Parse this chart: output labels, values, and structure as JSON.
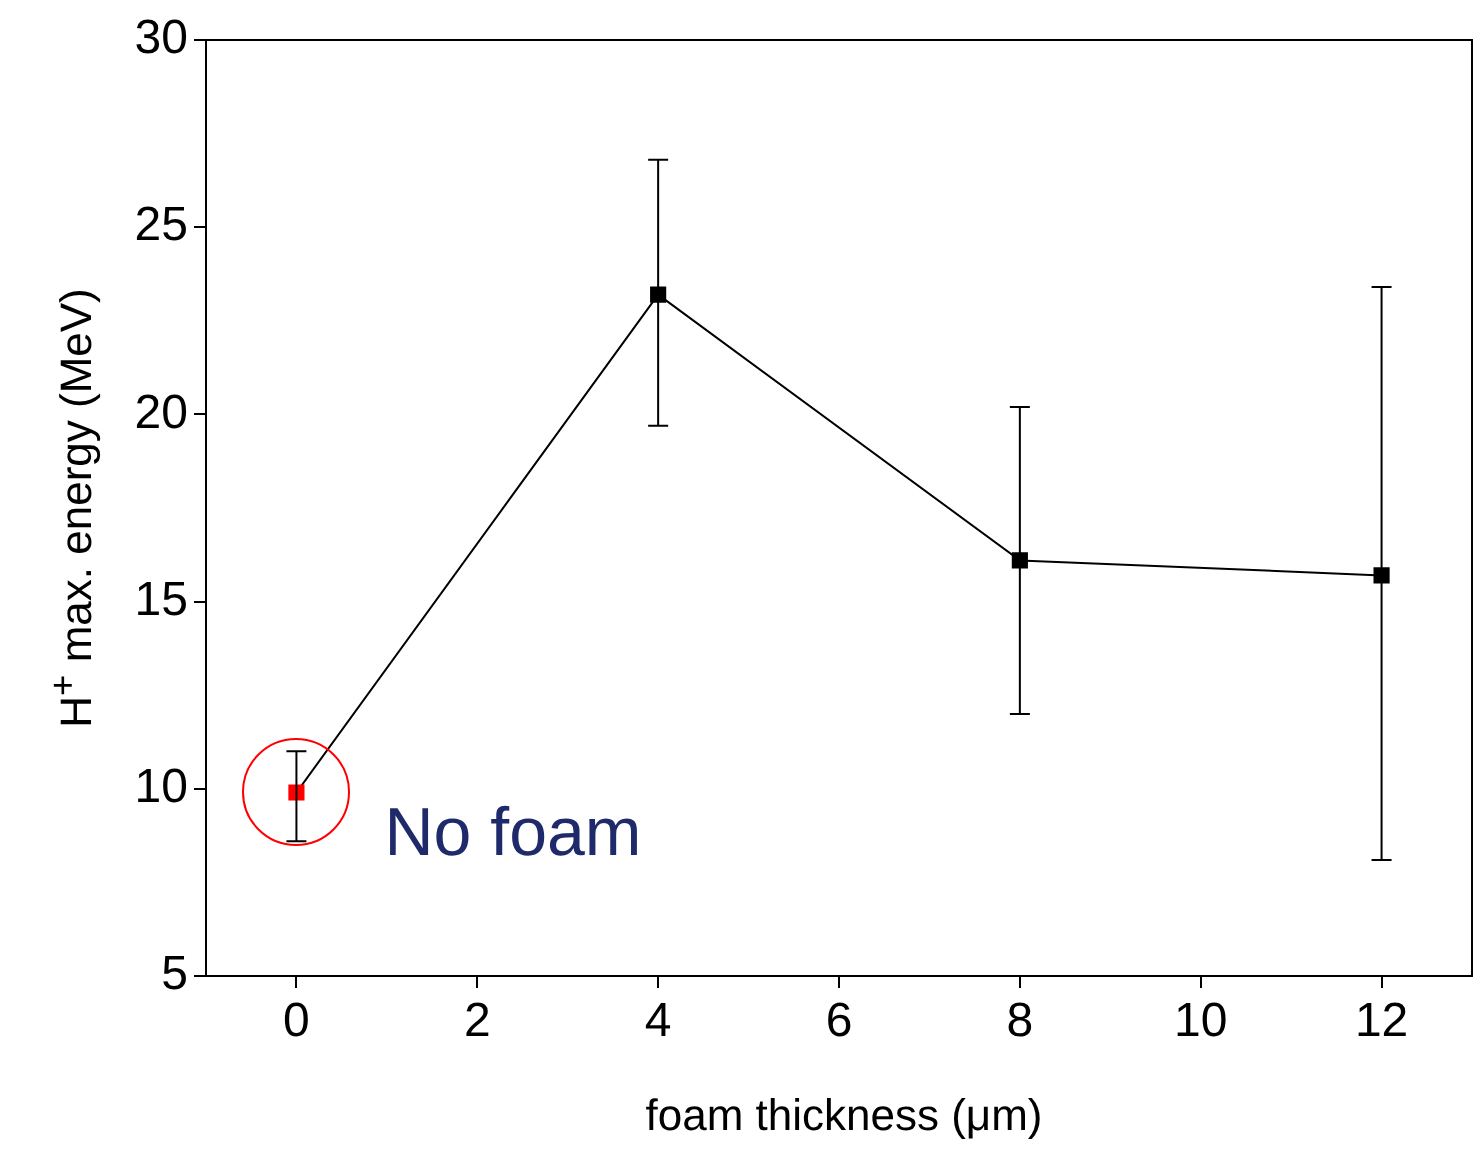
{
  "chart_data": {
    "type": "line",
    "xlabel": "foam thickness (μm)",
    "ylabel": "H$^{+}$ max. energy (MeV)",
    "x": [
      0,
      4,
      8,
      12
    ],
    "series": [
      {
        "color": "#000000",
        "colors": [
          "#ff0000",
          "#000000",
          "#000000",
          "#000000"
        ],
        "values": [
          9.9,
          23.2,
          16.1,
          15.7
        ],
        "errors": [
          [
            8.6,
            11.0
          ],
          [
            19.7,
            26.8
          ],
          [
            12.0,
            20.2
          ],
          [
            8.1,
            23.4
          ]
        ]
      }
    ],
    "xlim": [
      -1,
      13
    ],
    "xticks": [
      0,
      2,
      4,
      6,
      8,
      10,
      12
    ],
    "ylim": [
      5,
      30
    ],
    "yticks": [
      5,
      10,
      15,
      20,
      25,
      30
    ],
    "grid": false,
    "legend": false,
    "marker": "square",
    "line_style": "solid",
    "annotations": [
      {
        "text": "No foam",
        "x": 0,
        "y": 9.9
      }
    ]
  }
}
